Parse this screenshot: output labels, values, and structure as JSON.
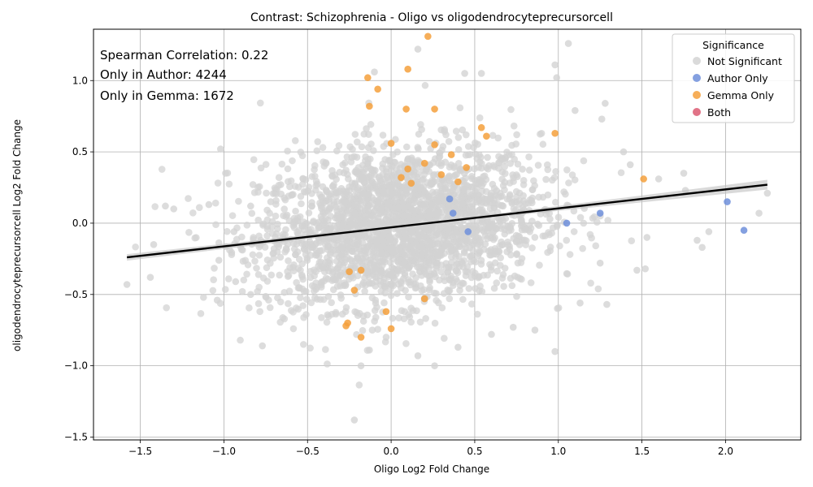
{
  "chart_data": {
    "type": "scatter",
    "title": "Contrast: Schizophrenia - Oligo vs oligodendrocyteprecursorcell",
    "xlabel": "Oligo Log2 Fold Change",
    "ylabel": "oligodendrocyteprecursorcell Log2 Fold Change",
    "xlim": [
      -1.78,
      2.45
    ],
    "ylim": [
      -1.52,
      1.36
    ],
    "xticks": [
      -1.5,
      -1.0,
      -0.5,
      0.0,
      0.5,
      1.0,
      1.5,
      2.0
    ],
    "yticks": [
      -1.5,
      -1.0,
      -0.5,
      0.0,
      0.5,
      1.0
    ],
    "xtick_labels": [
      "−1.5",
      "−1.0",
      "−0.5",
      "0.0",
      "0.5",
      "1.0",
      "1.5",
      "2.0"
    ],
    "ytick_labels": [
      "−1.5",
      "−1.0",
      "−0.5",
      "0.0",
      "0.5",
      "1.0"
    ],
    "grid": true,
    "annotations": [
      "Spearman Correlation: 0.22",
      "Only in Author: 4244",
      "Only in Gemma: 1672"
    ],
    "legend": {
      "title": "Significance",
      "placement": "top-right",
      "entries": [
        {
          "label": "Not Significant",
          "color": "#d3d3d3"
        },
        {
          "label": "Author Only",
          "color": "#6f8fdb"
        },
        {
          "label": "Gemma Only",
          "color": "#f5a03c"
        },
        {
          "label": "Both",
          "color": "#dc5a72"
        }
      ]
    },
    "regression_line": {
      "x": [
        -1.58,
        2.25
      ],
      "y": [
        -0.24,
        0.27
      ],
      "color": "#000000"
    },
    "series": [
      {
        "name": "Gemma Only",
        "color": "#f5a03c",
        "points": [
          [
            0.22,
            1.31
          ],
          [
            0.1,
            1.08
          ],
          [
            -0.14,
            1.02
          ],
          [
            -0.08,
            0.94
          ],
          [
            -0.13,
            0.82
          ],
          [
            0.09,
            0.8
          ],
          [
            0.26,
            0.8
          ],
          [
            0.98,
            0.63
          ],
          [
            0.57,
            0.61
          ],
          [
            0.54,
            0.67
          ],
          [
            0.0,
            0.56
          ],
          [
            0.26,
            0.55
          ],
          [
            0.36,
            0.48
          ],
          [
            0.2,
            0.42
          ],
          [
            0.1,
            0.38
          ],
          [
            0.3,
            0.34
          ],
          [
            0.06,
            0.32
          ],
          [
            0.12,
            0.28
          ],
          [
            0.4,
            0.29
          ],
          [
            1.51,
            0.31
          ],
          [
            -0.27,
            -0.72
          ],
          [
            -0.26,
            -0.7
          ],
          [
            -0.18,
            -0.8
          ],
          [
            -0.03,
            -0.62
          ],
          [
            0.0,
            -0.74
          ],
          [
            0.2,
            -0.53
          ],
          [
            -0.22,
            -0.47
          ],
          [
            0.45,
            0.39
          ],
          [
            -0.18,
            -0.33
          ],
          [
            -0.25,
            -0.34
          ]
        ]
      },
      {
        "name": "Author Only",
        "color": "#6f8fdb",
        "points": [
          [
            2.01,
            0.15
          ],
          [
            2.11,
            -0.05
          ],
          [
            1.25,
            0.07
          ],
          [
            1.05,
            0.0
          ],
          [
            0.46,
            -0.06
          ],
          [
            0.37,
            0.07
          ],
          [
            0.35,
            0.17
          ]
        ]
      },
      {
        "name": "Both",
        "color": "#dc5a72",
        "points": []
      }
    ],
    "background_cloud": {
      "name": "Not Significant",
      "color": "#d3d3d3",
      "approx_center": [
        0.05,
        -0.02
      ],
      "approx_spread": [
        0.42,
        0.27
      ],
      "outliers": [
        [
          -1.58,
          -0.43
        ],
        [
          -1.42,
          -0.15
        ],
        [
          -1.44,
          -0.38
        ],
        [
          -1.35,
          0.12
        ],
        [
          -1.3,
          0.1
        ],
        [
          -1.09,
          0.13
        ],
        [
          -1.02,
          0.52
        ],
        [
          -0.99,
          0.35
        ],
        [
          -1.03,
          -0.26
        ],
        [
          -1.04,
          -0.54
        ],
        [
          -0.94,
          -0.06
        ],
        [
          -0.93,
          -0.41
        ],
        [
          -0.84,
          0.12
        ],
        [
          -0.84,
          -0.5
        ],
        [
          -0.77,
          -0.86
        ],
        [
          -0.78,
          -0.12
        ],
        [
          -0.72,
          0.15
        ],
        [
          -0.7,
          -0.18
        ],
        [
          -0.66,
          0.27
        ],
        [
          -0.22,
          -1.38
        ],
        [
          -0.18,
          -1.0
        ],
        [
          -0.13,
          -0.89
        ],
        [
          0.26,
          -1.0
        ],
        [
          0.16,
          -0.93
        ],
        [
          0.98,
          -0.9
        ],
        [
          0.98,
          1.11
        ],
        [
          1.06,
          1.26
        ],
        [
          0.44,
          1.05
        ],
        [
          0.54,
          1.05
        ],
        [
          0.16,
          1.22
        ],
        [
          -0.1,
          1.06
        ],
        [
          0.99,
          1.02
        ],
        [
          1.1,
          0.79
        ],
        [
          1.28,
          0.84
        ],
        [
          1.26,
          0.73
        ],
        [
          1.75,
          0.35
        ],
        [
          1.76,
          0.23
        ],
        [
          1.83,
          -0.12
        ],
        [
          1.86,
          -0.17
        ],
        [
          1.9,
          -0.06
        ],
        [
          2.2,
          0.07
        ],
        [
          2.25,
          0.21
        ],
        [
          1.6,
          0.31
        ],
        [
          1.53,
          -0.1
        ],
        [
          1.52,
          -0.32
        ],
        [
          1.47,
          -0.33
        ],
        [
          1.29,
          -0.57
        ],
        [
          1.13,
          -0.56
        ],
        [
          1.25,
          -0.28
        ],
        [
          0.86,
          -0.75
        ],
        [
          0.73,
          -0.73
        ],
        [
          0.6,
          -0.78
        ],
        [
          0.4,
          -0.87
        ],
        [
          1.39,
          0.5
        ],
        [
          1.43,
          0.41
        ]
      ]
    }
  }
}
